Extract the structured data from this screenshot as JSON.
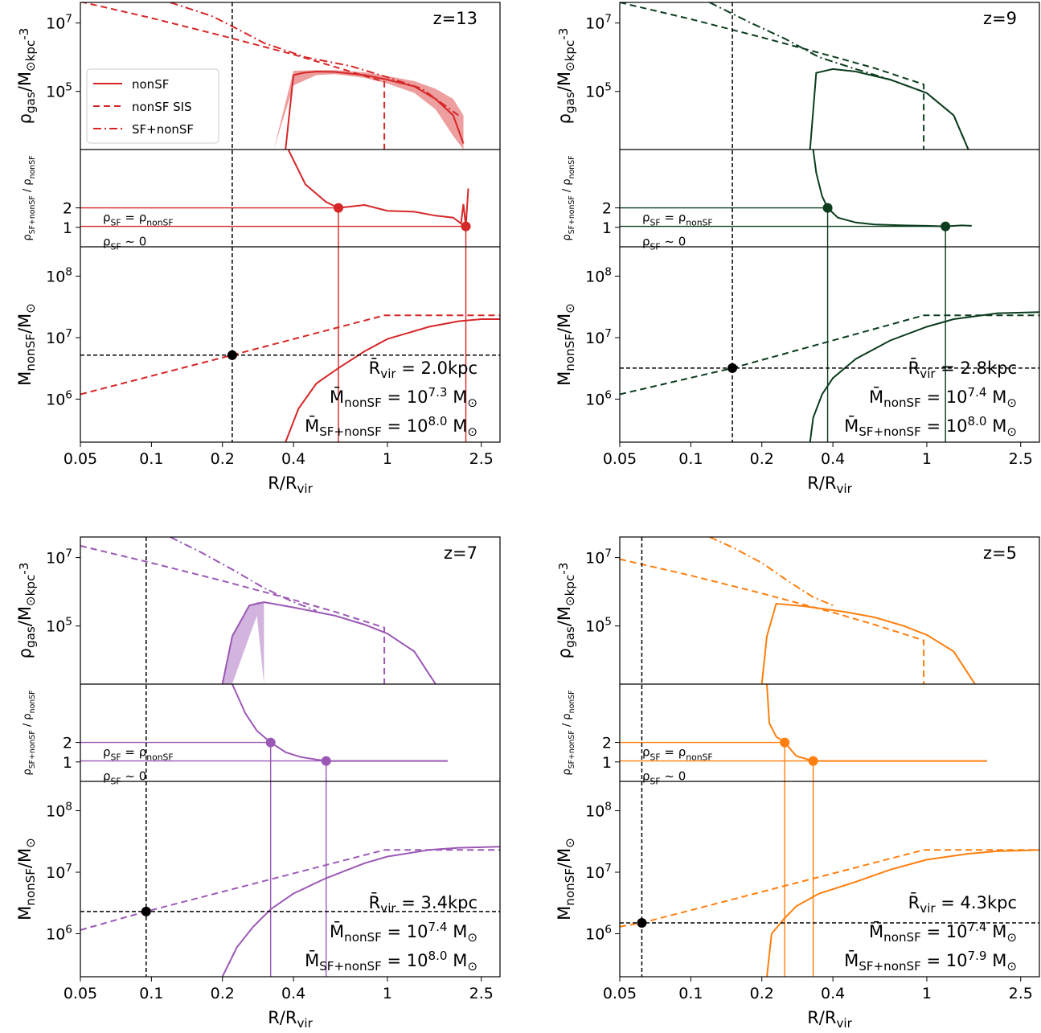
{
  "figure": {
    "xlabel": "R/R_vir",
    "rho_ylabel": "ρ_gas/M_⊙kpc^-3",
    "ratio_ylabel": "ρ_SF+nonSF / ρ_nonSF",
    "mass_ylabel": "M_nonSF/M_⊙",
    "x_ticks": [
      "0.05",
      "0.1",
      "0.2",
      "0.4",
      "1",
      "2.5"
    ],
    "rho_ticks": [
      "10^7",
      "10^5"
    ],
    "ratio_ticks": [
      "2",
      "1"
    ],
    "mass_ticks": [
      "10^8",
      "10^7",
      "10^6"
    ],
    "legend": [
      "nonSF",
      "nonSF SIS",
      "SF+nonSF"
    ],
    "line_labels": {
      "equal": "ρ_SF = ρ_nonSF",
      "zero": "ρ_SF ~ 0"
    }
  },
  "chart_data": [
    {
      "type": "line",
      "redshift_label": "z=13",
      "color": "#d62728",
      "xlim": [
        0.05,
        3.0
      ],
      "xscale": "log",
      "rho_ylim": [
        2000,
        40000000
      ],
      "ratio_ylim": [
        0,
        5
      ],
      "mass_ylim": [
        200000,
        300000000
      ],
      "r_vir_label": "R̄_vir = 2.0kpc",
      "m_nonsf_label": "M̄_nonSF = 10^7.3 M_⊙",
      "m_total_label": "M̄_SF+nonSF = 10^8.0 M_⊙",
      "vline_x": 0.22,
      "mass_marker": [
        0.22,
        5200000
      ],
      "ratio_markers": [
        [
          0.62,
          2.0
        ],
        [
          2.15,
          1.05
        ]
      ],
      "series": [
        {
          "name": "nonSF",
          "panel": "rho",
          "style": "solid",
          "x": [
            0.37,
            0.4,
            0.44,
            0.5,
            0.6,
            0.8,
            1.0,
            1.3,
            1.6,
            1.9,
            2.1
          ],
          "y": [
            2000,
            300000,
            350000,
            380000,
            370000,
            300000,
            220000,
            140000,
            60000,
            20000,
            3000
          ]
        },
        {
          "name": "nonSF SIS",
          "panel": "rho",
          "style": "dashed",
          "x": [
            0.05,
            0.1,
            0.2,
            0.4,
            0.6,
            0.97,
            0.97
          ],
          "y": [
            42000000,
            14000000,
            4200000,
            1200000,
            520000,
            190000,
            2000
          ]
        },
        {
          "name": "SF+nonSF",
          "panel": "rho",
          "style": "dashdot",
          "x": [
            0.12,
            0.18,
            0.22,
            0.3,
            0.45,
            0.7,
            1.0,
            1.4,
            2.0
          ],
          "y": [
            40000000,
            16000000,
            8000000,
            2600000,
            1000000,
            550000,
            260000,
            120000,
            20000
          ]
        },
        {
          "name": "ratio",
          "panel": "ratio",
          "style": "solid",
          "x": [
            0.38,
            0.45,
            0.55,
            0.62,
            0.8,
            1.0,
            1.3,
            1.6,
            1.9,
            2.05,
            2.1,
            2.15,
            2.2
          ],
          "y": [
            5.0,
            3.2,
            2.3,
            2.0,
            2.15,
            1.85,
            1.8,
            1.6,
            1.5,
            1.2,
            2.2,
            1.05,
            3.0
          ]
        },
        {
          "name": "nonSF mass",
          "panel": "mass",
          "style": "solid",
          "x": [
            0.37,
            0.42,
            0.5,
            0.62,
            0.8,
            1.0,
            1.5,
            2.0,
            2.5,
            3.0
          ],
          "y": [
            200000,
            700000,
            1800000,
            3200000,
            6000000,
            9500000,
            15000000,
            18500000,
            20000000,
            20000000
          ]
        },
        {
          "name": "SIS mass",
          "panel": "mass",
          "style": "dashed",
          "x": [
            0.05,
            0.22,
            0.97,
            3.0
          ],
          "y": [
            1200000,
            5200000,
            23000000,
            23000000
          ]
        }
      ],
      "band": {
        "x": [
          0.33,
          0.4,
          0.5,
          0.6,
          0.8,
          1.0,
          1.3,
          1.6,
          1.9,
          2.1
        ],
        "lo": [
          2000,
          150000,
          300000,
          320000,
          250000,
          170000,
          90000,
          30000,
          5000,
          2000
        ],
        "hi": [
          2000,
          400000,
          420000,
          420000,
          360000,
          280000,
          200000,
          120000,
          60000,
          20000
        ]
      }
    },
    {
      "type": "line",
      "redshift_label": "z=9",
      "color": "#0b3d1e",
      "xlim": [
        0.05,
        3.0
      ],
      "xscale": "log",
      "rho_ylim": [
        2000,
        40000000
      ],
      "ratio_ylim": [
        0,
        5
      ],
      "mass_ylim": [
        200000,
        300000000
      ],
      "r_vir_label": "R̄_vir = 2.8kpc",
      "m_nonsf_label": "M̄_nonSF = 10^7.4 M_⊙",
      "m_total_label": "M̄_SF+nonSF = 10^8.0 M_⊙",
      "vline_x": 0.15,
      "mass_marker": [
        0.15,
        3200000
      ],
      "ratio_markers": [
        [
          0.38,
          2.0
        ],
        [
          1.2,
          1.05
        ]
      ],
      "series": [
        {
          "name": "nonSF",
          "panel": "rho",
          "style": "solid",
          "x": [
            0.32,
            0.34,
            0.4,
            0.5,
            0.7,
            1.0,
            1.3,
            1.5
          ],
          "y": [
            2000,
            350000,
            450000,
            380000,
            220000,
            90000,
            20000,
            2000
          ]
        },
        {
          "name": "nonSF SIS",
          "panel": "rho",
          "style": "dashed",
          "x": [
            0.05,
            0.1,
            0.2,
            0.4,
            0.6,
            0.97,
            0.97
          ],
          "y": [
            40000000,
            13000000,
            3800000,
            1050000,
            480000,
            160000,
            2000
          ]
        },
        {
          "name": "SF+nonSF",
          "panel": "rho",
          "style": "dashdot",
          "x": [
            0.12,
            0.18,
            0.25,
            0.35,
            0.5,
            0.7,
            1.0,
            1.3,
            1.5
          ],
          "y": [
            40000000,
            10000000,
            3500000,
            1000000,
            450000,
            220000,
            90000,
            20000,
            2000
          ]
        },
        {
          "name": "ratio",
          "panel": "ratio",
          "style": "solid",
          "x": [
            0.33,
            0.34,
            0.36,
            0.38,
            0.42,
            0.5,
            0.6,
            0.8,
            1.0,
            1.2,
            1.4,
            1.55
          ],
          "y": [
            5.0,
            3.8,
            2.6,
            2.0,
            1.5,
            1.25,
            1.15,
            1.1,
            1.08,
            1.05,
            1.1,
            1.08
          ]
        },
        {
          "name": "nonSF mass",
          "panel": "mass",
          "style": "solid",
          "x": [
            0.32,
            0.33,
            0.36,
            0.4,
            0.5,
            0.7,
            1.0,
            1.3,
            2.0,
            3.0
          ],
          "y": [
            200000,
            500000,
            1200000,
            2200000,
            4500000,
            9000000,
            15000000,
            20000000,
            25000000,
            26000000
          ]
        },
        {
          "name": "SIS mass",
          "panel": "mass",
          "style": "dashed",
          "x": [
            0.05,
            0.15,
            0.97,
            3.0
          ],
          "y": [
            1200000,
            3200000,
            23000000,
            23000000
          ]
        }
      ]
    },
    {
      "type": "line",
      "redshift_label": "z=7",
      "color": "#9b59b6",
      "xlim": [
        0.05,
        3.0
      ],
      "xscale": "log",
      "rho_ylim": [
        2000,
        40000000
      ],
      "ratio_ylim": [
        0,
        5
      ],
      "mass_ylim": [
        200000,
        300000000
      ],
      "r_vir_label": "R̄_vir = 3.4kpc",
      "m_nonsf_label": "M̄_nonSF = 10^7.4 M_⊙",
      "m_total_label": "M̄_SF+nonSF = 10^8.0 M_⊙",
      "vline_x": 0.095,
      "mass_marker": [
        0.095,
        2300000
      ],
      "ratio_markers": [
        [
          0.32,
          2.0
        ],
        [
          0.55,
          1.05
        ]
      ],
      "series": [
        {
          "name": "nonSF",
          "panel": "rho",
          "style": "solid",
          "x": [
            0.2,
            0.22,
            0.26,
            0.3,
            0.4,
            0.6,
            0.8,
            1.0,
            1.3,
            1.6
          ],
          "y": [
            2000,
            50000,
            400000,
            500000,
            350000,
            200000,
            110000,
            60000,
            18000,
            2000
          ]
        },
        {
          "name": "nonSF SIS",
          "panel": "rho",
          "style": "dashed",
          "x": [
            0.05,
            0.1,
            0.2,
            0.4,
            0.6,
            0.97,
            0.97
          ],
          "y": [
            22000000,
            7000000,
            2100000,
            580000,
            260000,
            90000,
            2000
          ]
        },
        {
          "name": "SF+nonSF",
          "panel": "rho",
          "style": "dashdot",
          "x": [
            0.12,
            0.16,
            0.22,
            0.3,
            0.4,
            0.5
          ],
          "y": [
            40000000,
            15000000,
            4500000,
            1300000,
            500000,
            280000
          ]
        },
        {
          "name": "ratio",
          "panel": "ratio",
          "style": "solid",
          "x": [
            0.22,
            0.25,
            0.28,
            0.32,
            0.37,
            0.43,
            0.55,
            0.8,
            1.0,
            1.4,
            1.8
          ],
          "y": [
            5.0,
            3.5,
            2.6,
            2.0,
            1.5,
            1.25,
            1.05,
            1.05,
            1.05,
            1.05,
            1.05
          ]
        },
        {
          "name": "nonSF mass",
          "panel": "mass",
          "style": "solid",
          "x": [
            0.2,
            0.23,
            0.27,
            0.32,
            0.4,
            0.55,
            0.8,
            1.0,
            1.5,
            2.0,
            3.0
          ],
          "y": [
            200000,
            600000,
            1300000,
            2500000,
            4500000,
            8000000,
            14000000,
            18000000,
            23000000,
            25000000,
            26000000
          ]
        },
        {
          "name": "SIS mass",
          "panel": "mass",
          "style": "dashed",
          "x": [
            0.05,
            0.095,
            0.97,
            3.0
          ],
          "y": [
            1150000,
            2300000,
            23000000,
            23000000
          ]
        }
      ],
      "band": {
        "x": [
          0.2,
          0.22,
          0.26,
          0.28,
          0.3
        ],
        "lo": [
          2000,
          2000,
          50000,
          200000,
          2000
        ],
        "hi": [
          2000,
          50000,
          400000,
          500000,
          500000
        ]
      }
    },
    {
      "type": "line",
      "redshift_label": "z=5",
      "color": "#ff7f0e",
      "xlim": [
        0.05,
        3.0
      ],
      "xscale": "log",
      "rho_ylim": [
        2000,
        40000000
      ],
      "ratio_ylim": [
        0,
        5
      ],
      "mass_ylim": [
        200000,
        300000000
      ],
      "r_vir_label": "R̄_vir = 4.3kpc",
      "m_nonsf_label": "M̄_nonSF = 10^7.4 M_⊙",
      "m_total_label": "M̄_SF+nonSF = 10^7.9 M_⊙",
      "vline_x": 0.062,
      "mass_marker": [
        0.062,
        1500000
      ],
      "ratio_markers": [
        [
          0.25,
          2.0
        ],
        [
          0.33,
          1.05
        ]
      ],
      "series": [
        {
          "name": "nonSF",
          "panel": "rho",
          "style": "solid",
          "x": [
            0.2,
            0.21,
            0.23,
            0.3,
            0.45,
            0.6,
            0.8,
            1.0,
            1.3,
            1.6
          ],
          "y": [
            2000,
            50000,
            450000,
            380000,
            260000,
            180000,
            100000,
            55000,
            18000,
            2000
          ]
        },
        {
          "name": "nonSF SIS",
          "panel": "rho",
          "style": "dashed",
          "x": [
            0.05,
            0.1,
            0.2,
            0.4,
            0.6,
            0.97,
            0.97
          ],
          "y": [
            9000000,
            3000000,
            900000,
            250000,
            110000,
            38000,
            2000
          ]
        },
        {
          "name": "SF+nonSF",
          "panel": "rho",
          "style": "dashdot",
          "x": [
            0.12,
            0.15,
            0.2,
            0.26,
            0.33,
            0.4
          ],
          "y": [
            40000000,
            20000000,
            7000000,
            2000000,
            700000,
            400000
          ]
        },
        {
          "name": "ratio",
          "panel": "ratio",
          "style": "solid",
          "x": [
            0.21,
            0.215,
            0.23,
            0.25,
            0.28,
            0.33,
            0.45,
            0.7,
            1.0,
            1.5,
            1.8
          ],
          "y": [
            5.0,
            3.0,
            2.3,
            2.0,
            1.3,
            1.05,
            1.05,
            1.05,
            1.05,
            1.05,
            1.05
          ]
        },
        {
          "name": "nonSF mass",
          "panel": "mass",
          "style": "solid",
          "x": [
            0.21,
            0.22,
            0.25,
            0.28,
            0.35,
            0.5,
            0.7,
            1.0,
            1.5,
            2.0,
            3.0
          ],
          "y": [
            200000,
            1000000,
            1800000,
            2800000,
            4500000,
            7000000,
            11000000,
            16000000,
            20000000,
            22000000,
            23000000
          ]
        },
        {
          "name": "SIS mass",
          "panel": "mass",
          "style": "dashed",
          "x": [
            0.05,
            0.062,
            0.97,
            3.0
          ],
          "y": [
            1300000,
            1500000,
            23000000,
            23000000
          ]
        }
      ]
    }
  ]
}
